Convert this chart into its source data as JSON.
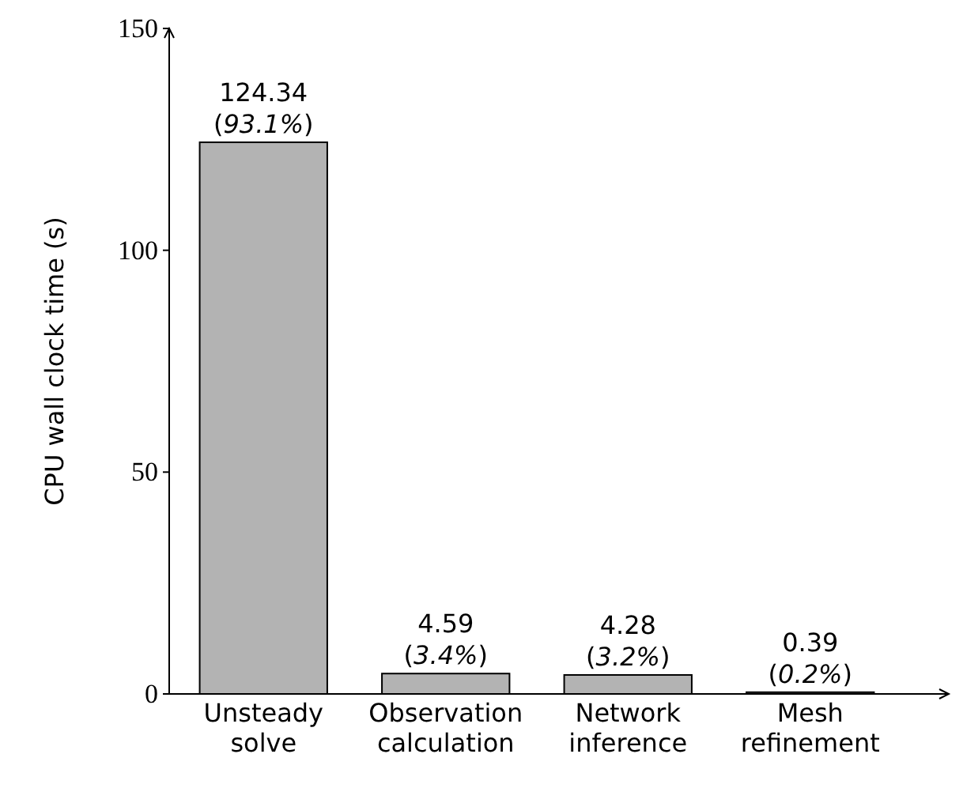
{
  "chart_data": {
    "type": "bar",
    "ylabel": "CPU wall clock time (s)",
    "categories": [
      "Unsteady solve",
      "Observation calculation",
      "Network inference",
      "Mesh refinement"
    ],
    "values": [
      124.34,
      4.59,
      4.28,
      0.39
    ],
    "value_labels": [
      "124.34 (93.1%)",
      "4.59 (3.4%)",
      "4.28 (3.2%)",
      "0.39 (0.2%)"
    ],
    "color": "#b3b3b3",
    "ylim": [
      0,
      150
    ],
    "yticks": [
      0,
      50,
      100,
      150
    ]
  }
}
